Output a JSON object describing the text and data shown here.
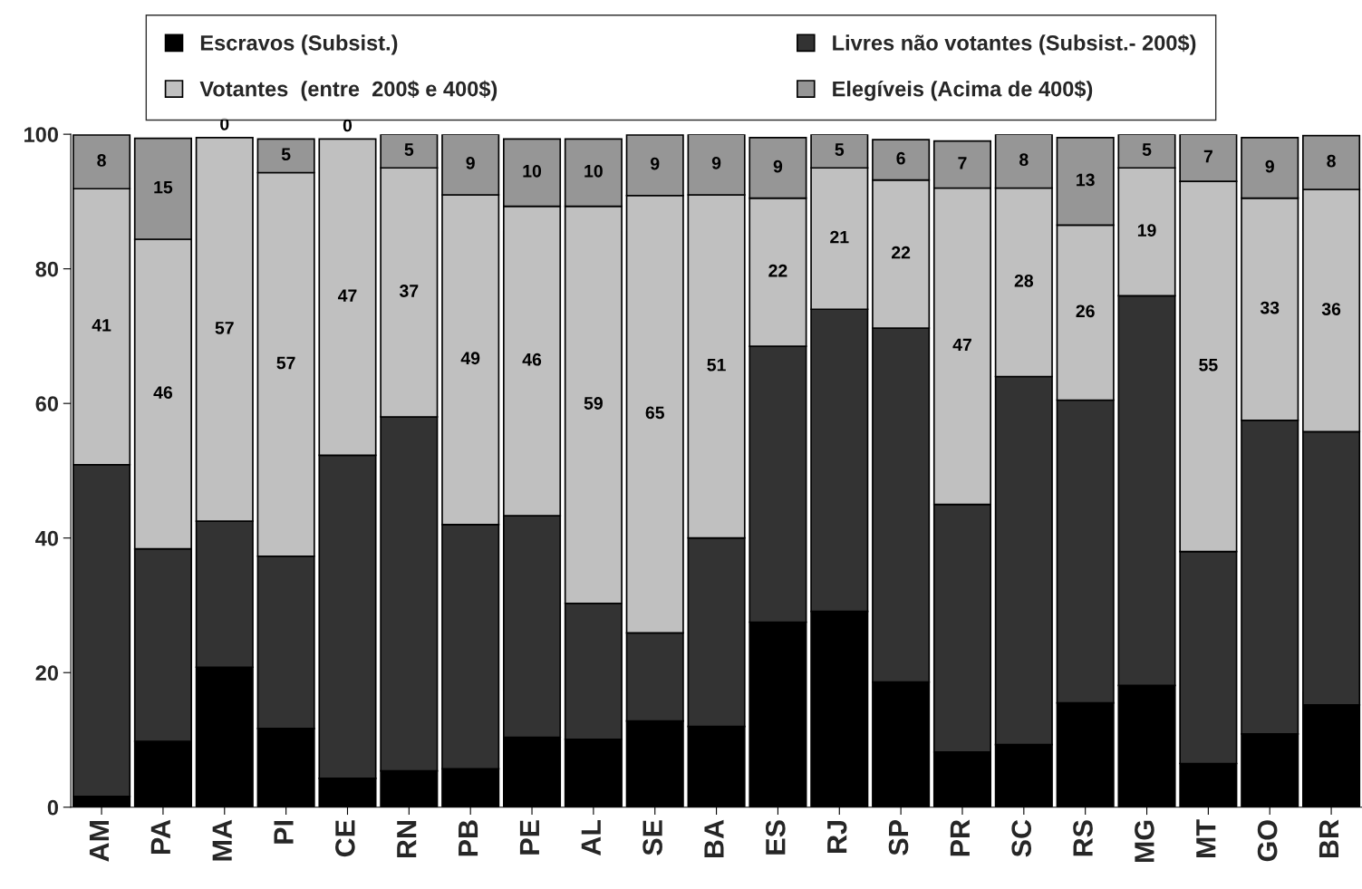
{
  "chart_data": {
    "type": "bar",
    "stacked": true,
    "categories": [
      "AM",
      "PA",
      "MA",
      "PI",
      "CE",
      "RN",
      "PB",
      "PE",
      "AL",
      "SE",
      "BA",
      "ES",
      "RJ",
      "SP",
      "PR",
      "SC",
      "RS",
      "MG",
      "MT",
      "GO",
      "BR"
    ],
    "series": [
      {
        "name": "Escravos (Subsist.)",
        "color": "#000000",
        "values": [
          1.6,
          9.8,
          20.8,
          11.7,
          4.3,
          5.4,
          5.7,
          10.4,
          10.1,
          12.8,
          12.0,
          27.5,
          29.1,
          18.6,
          8.2,
          9.3,
          15.5,
          18.1,
          6.5,
          10.9,
          15.2
        ]
      },
      {
        "name": "Livres não votantes (Subsist.- 200$)",
        "color": "#333333",
        "values": [
          49.3,
          28.6,
          21.7,
          25.6,
          48.0,
          52.6,
          36.3,
          32.9,
          20.2,
          13.1,
          28.0,
          41.0,
          44.9,
          52.6,
          36.8,
          54.7,
          45.0,
          57.9,
          31.5,
          46.6,
          40.6
        ]
      },
      {
        "name": "Votantes  (entre  200$ e 400$)",
        "color": "#c0c0c0",
        "values": [
          41,
          46,
          57,
          57,
          47,
          37,
          49,
          46,
          59,
          65,
          51,
          22,
          21,
          22,
          47,
          28,
          26,
          19,
          55,
          33,
          36
        ],
        "value_labels": [
          "41",
          "46",
          "57",
          "57",
          "47",
          "37",
          "49",
          "46",
          "59",
          "65",
          "51",
          "22",
          "21",
          "22",
          "47",
          "28",
          "26",
          "19",
          "55",
          "33",
          "36"
        ]
      },
      {
        "name": "Elegíveis (Acima de 400$)",
        "color": "#969696",
        "values": [
          8,
          15,
          0,
          5,
          0,
          5,
          9,
          10,
          10,
          9,
          9,
          9,
          5,
          6,
          7,
          8,
          13,
          5,
          7,
          9,
          8
        ],
        "value_labels": [
          "8",
          "15",
          "0",
          "5",
          "0",
          "5",
          "9",
          "10",
          "10",
          "9",
          "9",
          "9",
          "5",
          "6",
          "7",
          "8",
          "13",
          "5",
          "7",
          "9",
          "8"
        ]
      }
    ],
    "ylim": [
      0,
      100
    ],
    "yticks": [
      0,
      20,
      40,
      60,
      80,
      100
    ],
    "grid": false,
    "legend": "top"
  }
}
